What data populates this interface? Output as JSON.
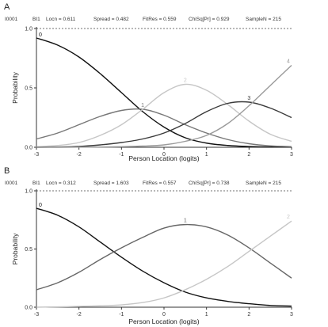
{
  "chart_data": [
    {
      "type": "line",
      "panel_letter": "A",
      "stats": {
        "item": "I0001",
        "label": "BI1",
        "locn": "Locn = 0.611",
        "spread": "Spread = 0.482",
        "fitres": "FitRes = 0.559",
        "chisq": "ChiSq[Pr] = 0.929",
        "samplen": "SampleN = 215"
      },
      "xlabel": "Person Location (logits)",
      "ylabel": "Probability",
      "xlim": [
        -3,
        3
      ],
      "ylim": [
        0,
        1
      ],
      "x_ticks": [
        "-3",
        "-2",
        "-1",
        "0",
        "1",
        "2",
        "3"
      ],
      "y_ticks": [
        "0.0",
        "0.5",
        "1.0"
      ],
      "reference_line": 1.0,
      "x": [
        -3,
        -2.5,
        -2,
        -1.5,
        -1,
        -0.5,
        0,
        0.5,
        1,
        1.5,
        2,
        2.5,
        3
      ],
      "series": [
        {
          "label": "0",
          "color": "#111111",
          "values": [
            0.92,
            0.86,
            0.76,
            0.62,
            0.46,
            0.3,
            0.17,
            0.08,
            0.035,
            0.015,
            0.006,
            0.002,
            0.001
          ]
        },
        {
          "label": "1",
          "color": "#777777",
          "values": [
            0.07,
            0.12,
            0.19,
            0.26,
            0.31,
            0.32,
            0.27,
            0.19,
            0.12,
            0.065,
            0.03,
            0.012,
            0.005
          ]
        },
        {
          "label": "2",
          "color": "#c6c6c6",
          "values": [
            0.005,
            0.015,
            0.04,
            0.1,
            0.19,
            0.32,
            0.46,
            0.53,
            0.48,
            0.36,
            0.22,
            0.11,
            0.05
          ]
        },
        {
          "label": "3",
          "color": "#3a3a3a",
          "values": [
            0.0,
            0.002,
            0.007,
            0.02,
            0.04,
            0.07,
            0.12,
            0.2,
            0.3,
            0.37,
            0.38,
            0.33,
            0.25
          ]
        },
        {
          "label": "4",
          "color": "#9a9a9a",
          "values": [
            0.0,
            0.0,
            0.001,
            0.002,
            0.005,
            0.01,
            0.02,
            0.05,
            0.1,
            0.2,
            0.35,
            0.52,
            0.69
          ]
        }
      ]
    },
    {
      "type": "line",
      "panel_letter": "B",
      "stats": {
        "item": "I0001",
        "label": "BI1",
        "locn": "Locn = 0.312",
        "spread": "Spread = 1.603",
        "fitres": "FitRes = 0.557",
        "chisq": "ChiSq[Pr] = 0.738",
        "samplen": "SampleN = 215"
      },
      "xlabel": "Person Location (logits)",
      "ylabel": "Probability",
      "xlim": [
        -3,
        3
      ],
      "ylim": [
        0,
        1
      ],
      "x_ticks": [
        "-3",
        "-2",
        "-1",
        "0",
        "1",
        "2",
        "3"
      ],
      "y_ticks": [
        "0.0",
        "0.5",
        "1.0"
      ],
      "reference_line": 1.0,
      "x": [
        -3,
        -2.5,
        -2,
        -1.5,
        -1,
        -0.5,
        0,
        0.5,
        1,
        1.5,
        2,
        2.5,
        3
      ],
      "series": [
        {
          "label": "0",
          "color": "#111111",
          "values": [
            0.85,
            0.79,
            0.69,
            0.56,
            0.43,
            0.31,
            0.21,
            0.13,
            0.08,
            0.05,
            0.03,
            0.015,
            0.01
          ]
        },
        {
          "label": "1",
          "color": "#666666",
          "values": [
            0.15,
            0.21,
            0.3,
            0.41,
            0.51,
            0.6,
            0.68,
            0.71,
            0.69,
            0.62,
            0.51,
            0.38,
            0.25
          ]
        },
        {
          "label": "2",
          "color": "#c6c6c6",
          "values": [
            0.0,
            0.003,
            0.007,
            0.012,
            0.02,
            0.04,
            0.08,
            0.15,
            0.24,
            0.35,
            0.48,
            0.61,
            0.74
          ]
        }
      ]
    }
  ]
}
